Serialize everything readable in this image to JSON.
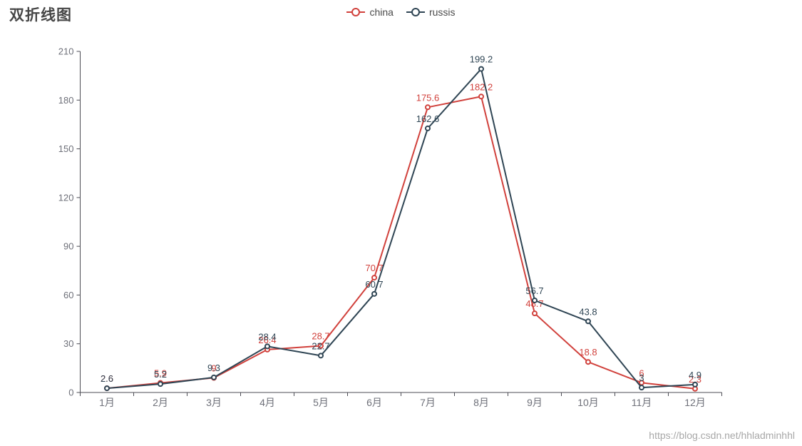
{
  "page": {
    "title": "双折线图",
    "watermark": "https://blog.csdn.net/hhladminhhl"
  },
  "chart_data": {
    "type": "line",
    "title": "双折线图",
    "categories": [
      "1月",
      "2月",
      "3月",
      "4月",
      "5月",
      "6月",
      "7月",
      "8月",
      "9月",
      "10月",
      "11月",
      "12月"
    ],
    "series": [
      {
        "name": "china",
        "color": "#d1413c",
        "values": [
          2.6,
          5.9,
          9,
          26.4,
          28.7,
          70.7,
          175.6,
          182.2,
          48.7,
          18.8,
          6,
          2.3
        ]
      },
      {
        "name": "russis",
        "color": "#2f4554",
        "values": [
          2.6,
          5.2,
          9.3,
          28.4,
          22.7,
          60.7,
          162.6,
          199.2,
          56.7,
          43.8,
          3,
          4.9
        ]
      }
    ],
    "xlabel": "",
    "ylabel": "",
    "ylim": [
      0,
      210
    ],
    "yticks": [
      0,
      30,
      60,
      90,
      120,
      150,
      180,
      210
    ],
    "grid": false,
    "legend_position": "top-center",
    "point_labels": "shown above each point in series color",
    "marker_style": "hollow circle, white fill",
    "axis_line_color": "#4c4c54",
    "tick_label_color": "#6E7079"
  }
}
